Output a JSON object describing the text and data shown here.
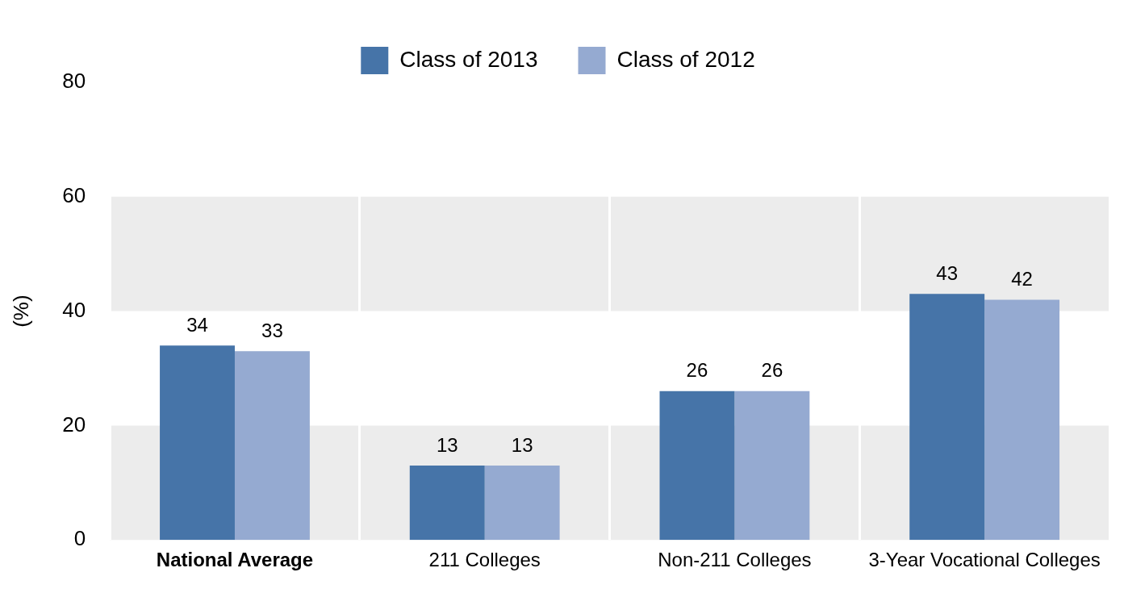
{
  "chart_data": {
    "type": "bar",
    "ylabel": "(%)",
    "categories": [
      "National Average",
      "211 Colleges",
      "Non-211 Colleges",
      "3-Year Vocational Colleges"
    ],
    "series": [
      {
        "name": "Class of 2013",
        "color": "#4674a8",
        "values": [
          34,
          13,
          26,
          43
        ]
      },
      {
        "name": "Class of 2012",
        "color": "#95aad1",
        "values": [
          33,
          13,
          26,
          42
        ]
      }
    ],
    "ylim": [
      0,
      80
    ],
    "yticks": [
      0,
      20,
      40,
      60,
      80
    ],
    "grid": "x",
    "legend": "top",
    "data_labels": true,
    "bands": [
      {
        "axis": "y",
        "from": 0,
        "to": 20,
        "color": "#ececec"
      },
      {
        "axis": "y",
        "from": 40,
        "to": 60,
        "color": "#ececec"
      }
    ]
  }
}
